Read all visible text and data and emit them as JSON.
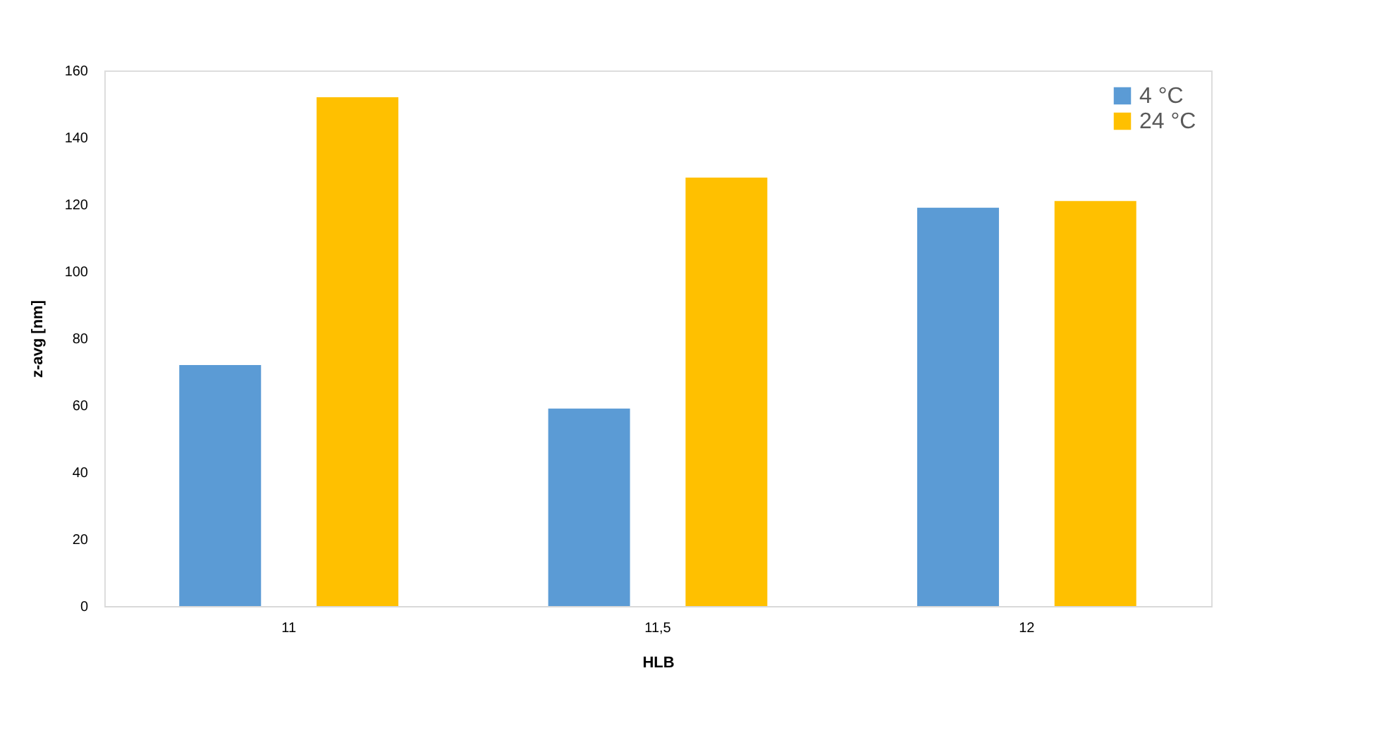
{
  "chart_data": {
    "type": "bar",
    "xlabel": "HLB",
    "ylabel": "z-avg [nm]",
    "categories": [
      "11",
      "11,5",
      "12"
    ],
    "series": [
      {
        "name": "4 °C",
        "color": "#5b9bd5",
        "values": [
          72,
          59,
          119
        ]
      },
      {
        "name": "24 °C",
        "color": "#ffc000",
        "values": [
          152,
          128,
          121
        ]
      }
    ],
    "ylim": [
      0,
      160
    ],
    "yticks": [
      0,
      20,
      40,
      60,
      80,
      100,
      120,
      140,
      160
    ],
    "grid": false,
    "legend": "top right"
  }
}
